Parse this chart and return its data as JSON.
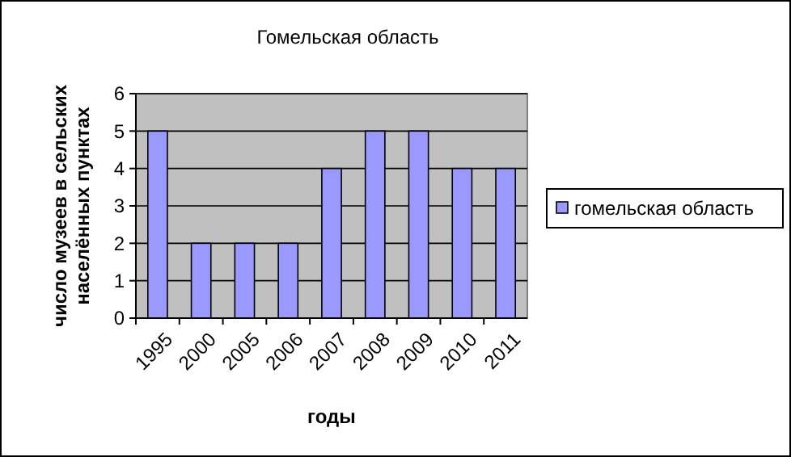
{
  "chart_data": {
    "type": "bar",
    "title": "Гомельская область",
    "xlabel": "годы",
    "ylabel": "число музеев в сельских населённых пунктах",
    "categories": [
      "1995",
      "2000",
      "2005",
      "2006",
      "2007",
      "2008",
      "2009",
      "2010",
      "2011"
    ],
    "series": [
      {
        "name": "гомельская область",
        "color": "#9999ff",
        "values": [
          5,
          2,
          2,
          2,
          4,
          5,
          5,
          4,
          4
        ]
      }
    ],
    "ylim": [
      0,
      6
    ],
    "yticks": [
      0,
      1,
      2,
      3,
      4,
      5,
      6
    ],
    "grid": "y",
    "legend": "right"
  }
}
